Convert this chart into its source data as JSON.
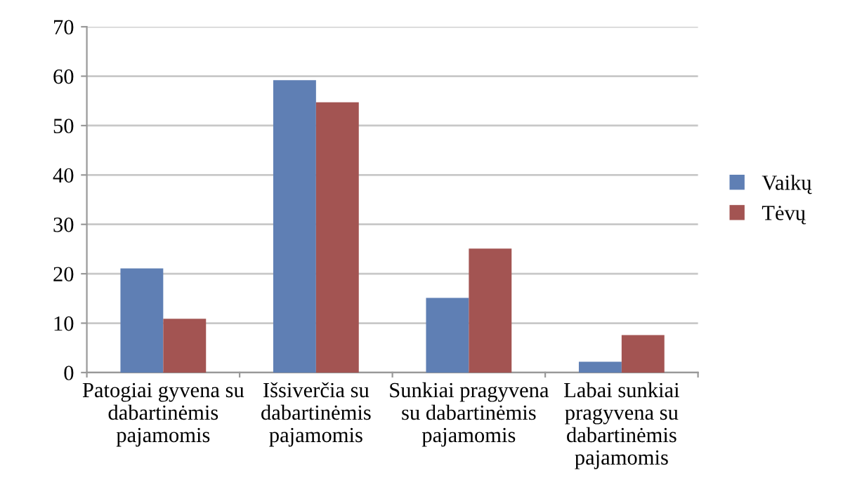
{
  "chart_data": {
    "type": "bar",
    "categories": [
      "Patogiai gyvena su\ndabartinėmis\npajamomis",
      "Išsiverčia su\ndabartinėmis\npajamomis",
      "Sunkiai pragyvena\nsu dabartinėmis\npajamomis",
      "Labai sunkiai\npragyvena su\ndabartinėmis\npajamomis"
    ],
    "series": [
      {
        "name": "Vaikų",
        "color": "#5f7fb4",
        "values": [
          21.1,
          59.2,
          15.1,
          2.2
        ]
      },
      {
        "name": "Tėvų",
        "color": "#a35452",
        "values": [
          10.9,
          54.7,
          25.1,
          7.6
        ]
      }
    ],
    "ylim": [
      0,
      70
    ],
    "yticks": [
      0,
      10,
      20,
      30,
      40,
      50,
      60,
      70
    ],
    "grid": "y",
    "legend": "right"
  }
}
